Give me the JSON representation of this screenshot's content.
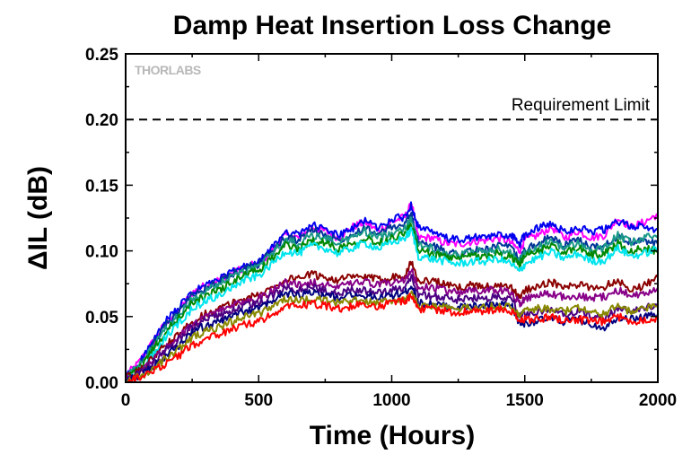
{
  "chart_data": {
    "type": "line",
    "title": "Damp Heat Insertion Loss Change",
    "xlabel": "Time (Hours)",
    "ylabel": "ΔIL (dB)",
    "xlim": [
      0,
      2000
    ],
    "ylim": [
      0,
      0.25
    ],
    "x_ticks": [
      0,
      500,
      1000,
      1500,
      2000
    ],
    "x_tick_labels": [
      "0",
      "500",
      "1000",
      "1500",
      "2000"
    ],
    "y_ticks": [
      0,
      0.05,
      0.1,
      0.15,
      0.2,
      0.25
    ],
    "y_tick_labels": [
      "0.00",
      "0.05",
      "0.10",
      "0.15",
      "0.20",
      "0.25"
    ],
    "grid": false,
    "logo": "THORLABS",
    "reference_line": {
      "label": "Requirement Limit",
      "y": 0.2,
      "style": "dashed",
      "color": "#000000"
    },
    "x": [
      0,
      50,
      100,
      150,
      200,
      250,
      300,
      350,
      400,
      450,
      500,
      550,
      600,
      650,
      700,
      750,
      800,
      850,
      900,
      950,
      1000,
      1050,
      1075,
      1100,
      1150,
      1200,
      1250,
      1300,
      1350,
      1400,
      1450,
      1480,
      1500,
      1550,
      1600,
      1650,
      1700,
      1750,
      1800,
      1850,
      1900,
      1950,
      2000
    ],
    "series": [
      {
        "color": "#ff00ff",
        "values": [
          0.005,
          0.015,
          0.03,
          0.045,
          0.055,
          0.068,
          0.074,
          0.078,
          0.083,
          0.088,
          0.09,
          0.1,
          0.112,
          0.11,
          0.118,
          0.115,
          0.11,
          0.118,
          0.122,
          0.115,
          0.122,
          0.126,
          0.136,
          0.11,
          0.11,
          0.106,
          0.105,
          0.107,
          0.108,
          0.11,
          0.106,
          0.1,
          0.108,
          0.112,
          0.118,
          0.11,
          0.115,
          0.11,
          0.112,
          0.125,
          0.118,
          0.122,
          0.128
        ]
      },
      {
        "color": "#0000ee",
        "values": [
          0.004,
          0.014,
          0.03,
          0.046,
          0.057,
          0.068,
          0.074,
          0.078,
          0.084,
          0.088,
          0.091,
          0.102,
          0.115,
          0.112,
          0.12,
          0.116,
          0.112,
          0.116,
          0.124,
          0.117,
          0.124,
          0.126,
          0.135,
          0.118,
          0.114,
          0.11,
          0.108,
          0.11,
          0.11,
          0.112,
          0.112,
          0.105,
          0.112,
          0.118,
          0.12,
          0.115,
          0.118,
          0.115,
          0.116,
          0.122,
          0.119,
          0.118,
          0.116
        ]
      },
      {
        "color": "#003399",
        "values": [
          0.003,
          0.013,
          0.028,
          0.043,
          0.054,
          0.066,
          0.072,
          0.076,
          0.082,
          0.087,
          0.09,
          0.1,
          0.11,
          0.108,
          0.116,
          0.112,
          0.108,
          0.113,
          0.118,
          0.112,
          0.118,
          0.12,
          0.128,
          0.106,
          0.104,
          0.1,
          0.098,
          0.1,
          0.101,
          0.104,
          0.102,
          0.092,
          0.1,
          0.106,
          0.11,
          0.104,
          0.108,
          0.103,
          0.104,
          0.112,
          0.106,
          0.108,
          0.105
        ]
      },
      {
        "color": "#1a9988",
        "values": [
          0.004,
          0.012,
          0.026,
          0.04,
          0.051,
          0.063,
          0.07,
          0.074,
          0.08,
          0.085,
          0.088,
          0.098,
          0.108,
          0.106,
          0.112,
          0.11,
          0.106,
          0.11,
          0.115,
          0.11,
          0.114,
          0.118,
          0.124,
          0.104,
          0.102,
          0.098,
          0.097,
          0.099,
          0.1,
          0.101,
          0.098,
          0.092,
          0.098,
          0.102,
          0.108,
          0.102,
          0.106,
          0.1,
          0.102,
          0.112,
          0.106,
          0.11,
          0.112
        ]
      },
      {
        "color": "#008800",
        "values": [
          0.003,
          0.01,
          0.024,
          0.038,
          0.049,
          0.06,
          0.066,
          0.07,
          0.076,
          0.082,
          0.085,
          0.094,
          0.104,
          0.102,
          0.108,
          0.106,
          0.102,
          0.106,
          0.11,
          0.106,
          0.11,
          0.114,
          0.12,
          0.1,
          0.098,
          0.095,
          0.094,
          0.096,
          0.096,
          0.098,
          0.095,
          0.09,
          0.095,
          0.1,
          0.104,
          0.098,
          0.102,
          0.097,
          0.098,
          0.106,
          0.1,
          0.102,
          0.1
        ]
      },
      {
        "color": "#00e5ee",
        "values": [
          0.002,
          0.008,
          0.02,
          0.034,
          0.045,
          0.056,
          0.062,
          0.066,
          0.072,
          0.078,
          0.081,
          0.09,
          0.1,
          0.098,
          0.104,
          0.102,
          0.098,
          0.102,
          0.106,
          0.102,
          0.106,
          0.11,
          0.116,
          0.096,
          0.094,
          0.092,
          0.09,
          0.092,
          0.092,
          0.094,
          0.09,
          0.084,
          0.09,
          0.095,
          0.099,
          0.094,
          0.098,
          0.092,
          0.093,
          0.102,
          0.096,
          0.098,
          0.102
        ]
      },
      {
        "color": "#8b0000",
        "values": [
          0.003,
          0.008,
          0.018,
          0.028,
          0.036,
          0.046,
          0.052,
          0.056,
          0.06,
          0.064,
          0.066,
          0.072,
          0.078,
          0.08,
          0.082,
          0.08,
          0.078,
          0.08,
          0.08,
          0.078,
          0.08,
          0.082,
          0.092,
          0.076,
          0.078,
          0.074,
          0.072,
          0.074,
          0.073,
          0.073,
          0.072,
          0.064,
          0.07,
          0.074,
          0.076,
          0.072,
          0.074,
          0.072,
          0.073,
          0.078,
          0.07,
          0.074,
          0.08
        ]
      },
      {
        "color": "#880088",
        "values": [
          0.002,
          0.007,
          0.016,
          0.026,
          0.034,
          0.044,
          0.05,
          0.054,
          0.058,
          0.062,
          0.064,
          0.07,
          0.076,
          0.074,
          0.076,
          0.075,
          0.072,
          0.075,
          0.076,
          0.074,
          0.076,
          0.078,
          0.085,
          0.072,
          0.072,
          0.07,
          0.068,
          0.07,
          0.07,
          0.07,
          0.068,
          0.06,
          0.064,
          0.066,
          0.068,
          0.064,
          0.066,
          0.064,
          0.065,
          0.07,
          0.066,
          0.068,
          0.072
        ]
      },
      {
        "color": "#4b0082",
        "values": [
          0.002,
          0.006,
          0.014,
          0.024,
          0.032,
          0.042,
          0.047,
          0.05,
          0.054,
          0.058,
          0.06,
          0.066,
          0.072,
          0.07,
          0.072,
          0.07,
          0.068,
          0.07,
          0.07,
          0.068,
          0.07,
          0.072,
          0.08,
          0.066,
          0.066,
          0.064,
          0.063,
          0.064,
          0.064,
          0.065,
          0.064,
          0.05,
          0.052,
          0.054,
          0.055,
          0.052,
          0.054,
          0.05,
          0.048,
          0.056,
          0.054,
          0.056,
          0.06
        ]
      },
      {
        "color": "#000080",
        "values": [
          0.001,
          0.005,
          0.012,
          0.02,
          0.028,
          0.038,
          0.043,
          0.046,
          0.05,
          0.054,
          0.056,
          0.062,
          0.068,
          0.066,
          0.068,
          0.066,
          0.064,
          0.066,
          0.066,
          0.064,
          0.066,
          0.068,
          0.074,
          0.06,
          0.06,
          0.058,
          0.057,
          0.058,
          0.058,
          0.059,
          0.058,
          0.045,
          0.045,
          0.047,
          0.048,
          0.046,
          0.048,
          0.044,
          0.042,
          0.05,
          0.048,
          0.05,
          0.052
        ]
      },
      {
        "color": "#888800",
        "values": [
          0.001,
          0.004,
          0.01,
          0.018,
          0.025,
          0.034,
          0.039,
          0.042,
          0.046,
          0.05,
          0.052,
          0.058,
          0.064,
          0.062,
          0.064,
          0.062,
          0.06,
          0.062,
          0.062,
          0.06,
          0.062,
          0.064,
          0.068,
          0.058,
          0.058,
          0.057,
          0.056,
          0.057,
          0.057,
          0.058,
          0.057,
          0.052,
          0.054,
          0.056,
          0.056,
          0.054,
          0.056,
          0.054,
          0.052,
          0.058,
          0.054,
          0.056,
          0.058
        ]
      },
      {
        "color": "#ff0000",
        "values": [
          0.0,
          0.003,
          0.008,
          0.014,
          0.02,
          0.028,
          0.033,
          0.036,
          0.04,
          0.044,
          0.046,
          0.052,
          0.058,
          0.058,
          0.06,
          0.058,
          0.056,
          0.058,
          0.06,
          0.058,
          0.06,
          0.062,
          0.066,
          0.056,
          0.056,
          0.054,
          0.053,
          0.054,
          0.054,
          0.055,
          0.054,
          0.046,
          0.048,
          0.048,
          0.05,
          0.047,
          0.048,
          0.046,
          0.046,
          0.05,
          0.046,
          0.048,
          0.048
        ]
      }
    ]
  }
}
